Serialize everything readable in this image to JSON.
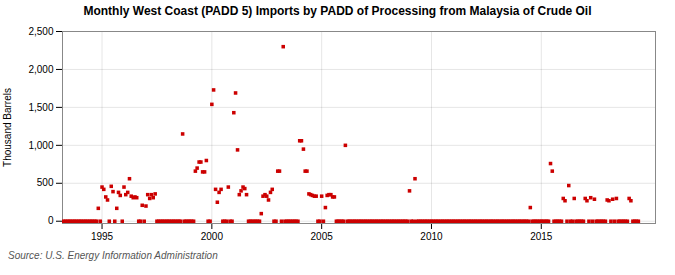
{
  "chart_data": {
    "type": "scatter",
    "title": "Monthly West Coast (PADD 5) Imports by PADD of Processing from Malaysia of Crude Oil",
    "ylabel": "Thousand Barrels",
    "source": "Source: U.S. Energy Information Administration",
    "color": "#cc0000",
    "marker": "square",
    "grid": true,
    "xlim": [
      1993.2,
      2020.2
    ],
    "xticks": [
      1995,
      2000,
      2005,
      2010,
      2015
    ],
    "ylim": [
      -30,
      2500
    ],
    "yticks": [
      0,
      500,
      {
        "value": 1000,
        "label": "1,000"
      },
      {
        "value": 1500,
        "label": "1,500"
      },
      {
        "value": 2000,
        "label": "2,000"
      },
      {
        "value": 2500,
        "label": "2,500"
      }
    ],
    "x": [
      1993.25,
      1993.33,
      1993.42,
      1993.5,
      1993.58,
      1993.67,
      1993.75,
      1993.83,
      1993.92,
      1994.0,
      1994.08,
      1994.17,
      1994.25,
      1994.33,
      1994.42,
      1994.5,
      1994.58,
      1994.67,
      1994.75,
      1994.83,
      1994.92,
      1995.0,
      1995.08,
      1995.17,
      1995.25,
      1995.33,
      1995.42,
      1995.5,
      1995.58,
      1995.67,
      1995.75,
      1995.83,
      1995.92,
      1996.0,
      1996.08,
      1996.17,
      1996.25,
      1996.33,
      1996.42,
      1996.5,
      1996.58,
      1996.67,
      1996.75,
      1996.83,
      1996.92,
      1997.0,
      1997.08,
      1997.17,
      1997.25,
      1997.33,
      1997.42,
      1997.5,
      1997.58,
      1997.67,
      1997.75,
      1997.83,
      1997.92,
      1998.0,
      1998.08,
      1998.17,
      1998.25,
      1998.33,
      1998.42,
      1998.5,
      1998.58,
      1998.67,
      1998.75,
      1998.83,
      1998.92,
      1999.0,
      1999.08,
      1999.17,
      1999.25,
      1999.33,
      1999.42,
      1999.5,
      1999.58,
      1999.67,
      1999.75,
      1999.83,
      1999.92,
      2000.0,
      2000.08,
      2000.17,
      2000.25,
      2000.33,
      2000.42,
      2000.5,
      2000.58,
      2000.67,
      2000.75,
      2000.83,
      2000.92,
      2001.0,
      2001.08,
      2001.17,
      2001.25,
      2001.33,
      2001.42,
      2001.5,
      2001.58,
      2001.67,
      2001.75,
      2001.83,
      2001.92,
      2002.0,
      2002.08,
      2002.17,
      2002.25,
      2002.33,
      2002.42,
      2002.5,
      2002.58,
      2002.67,
      2002.75,
      2002.83,
      2002.92,
      2003.0,
      2003.08,
      2003.17,
      2003.25,
      2003.33,
      2003.42,
      2003.5,
      2003.58,
      2003.67,
      2003.75,
      2003.83,
      2003.92,
      2004.0,
      2004.08,
      2004.17,
      2004.25,
      2004.33,
      2004.42,
      2004.5,
      2004.58,
      2004.67,
      2004.75,
      2004.83,
      2004.92,
      2005.0,
      2005.08,
      2005.17,
      2005.25,
      2005.33,
      2005.42,
      2005.5,
      2005.58,
      2005.67,
      2005.75,
      2005.83,
      2005.92,
      2006.0,
      2006.08,
      2006.17,
      2006.25,
      2006.33,
      2006.42,
      2006.5,
      2006.58,
      2006.67,
      2006.75,
      2006.83,
      2006.92,
      2007.0,
      2007.08,
      2007.17,
      2007.25,
      2007.33,
      2007.42,
      2007.5,
      2007.58,
      2007.67,
      2007.75,
      2007.83,
      2007.92,
      2008.0,
      2008.08,
      2008.17,
      2008.25,
      2008.33,
      2008.42,
      2008.5,
      2008.58,
      2008.67,
      2008.75,
      2008.83,
      2008.92,
      2009.0,
      2009.08,
      2009.17,
      2009.25,
      2009.33,
      2009.42,
      2009.5,
      2009.58,
      2009.67,
      2009.75,
      2009.83,
      2009.92,
      2010.0,
      2010.08,
      2010.17,
      2010.25,
      2010.33,
      2010.42,
      2010.5,
      2010.58,
      2010.67,
      2010.75,
      2010.83,
      2010.92,
      2011.0,
      2011.08,
      2011.17,
      2011.25,
      2011.33,
      2011.42,
      2011.5,
      2011.58,
      2011.67,
      2011.75,
      2011.83,
      2011.92,
      2012.0,
      2012.08,
      2012.17,
      2012.25,
      2012.33,
      2012.42,
      2012.5,
      2012.58,
      2012.67,
      2012.75,
      2012.83,
      2012.92,
      2013.0,
      2013.08,
      2013.17,
      2013.25,
      2013.33,
      2013.42,
      2013.5,
      2013.58,
      2013.67,
      2013.75,
      2013.83,
      2013.92,
      2014.0,
      2014.08,
      2014.17,
      2014.25,
      2014.33,
      2014.42,
      2014.5,
      2014.58,
      2014.67,
      2014.75,
      2014.83,
      2014.92,
      2015.0,
      2015.08,
      2015.17,
      2015.25,
      2015.33,
      2015.42,
      2015.5,
      2015.58,
      2015.67,
      2015.75,
      2015.83,
      2015.92,
      2016.0,
      2016.08,
      2016.17,
      2016.25,
      2016.33,
      2016.42,
      2016.5,
      2016.58,
      2016.67,
      2016.75,
      2016.83,
      2016.92,
      2017.0,
      2017.08,
      2017.17,
      2017.25,
      2017.33,
      2017.42,
      2017.5,
      2017.58,
      2017.67,
      2017.75,
      2017.83,
      2017.92,
      2018.0,
      2018.08,
      2018.17,
      2018.25,
      2018.33,
      2018.42,
      2018.5,
      2018.58,
      2018.67,
      2018.75,
      2018.83,
      2018.92,
      2019.0,
      2019.08,
      2019.17,
      2019.25,
      2019.33,
      2019.42
    ],
    "values": [
      0,
      0,
      0,
      0,
      0,
      0,
      0,
      0,
      0,
      0,
      0,
      0,
      0,
      0,
      0,
      0,
      0,
      0,
      0,
      170,
      0,
      450,
      420,
      320,
      280,
      0,
      460,
      390,
      0,
      170,
      380,
      340,
      0,
      450,
      350,
      380,
      560,
      330,
      310,
      320,
      310,
      0,
      0,
      210,
      0,
      200,
      350,
      300,
      350,
      310,
      360,
      0,
      0,
      0,
      0,
      0,
      0,
      0,
      0,
      0,
      0,
      0,
      0,
      0,
      0,
      1150,
      0,
      0,
      0,
      0,
      0,
      0,
      660,
      700,
      780,
      780,
      650,
      650,
      800,
      0,
      0,
      1540,
      1730,
      420,
      250,
      380,
      420,
      0,
      0,
      0,
      450,
      0,
      0,
      1430,
      1690,
      940,
      350,
      400,
      450,
      430,
      350,
      0,
      0,
      0,
      0,
      0,
      0,
      0,
      100,
      330,
      350,
      330,
      280,
      380,
      420,
      0,
      0,
      660,
      660,
      0,
      2300,
      0,
      0,
      0,
      0,
      0,
      0,
      0,
      0,
      1060,
      1060,
      950,
      660,
      660,
      360,
      350,
      340,
      330,
      330,
      0,
      0,
      330,
      0,
      180,
      340,
      350,
      350,
      320,
      320,
      0,
      0,
      0,
      0,
      0,
      1000,
      0,
      0,
      0,
      0,
      0,
      0,
      0,
      0,
      0,
      0,
      0,
      0,
      0,
      0,
      0,
      0,
      0,
      0,
      0,
      0,
      0,
      0,
      0,
      0,
      0,
      0,
      0,
      0,
      0,
      0,
      0,
      0,
      0,
      0,
      400,
      0,
      0,
      560,
      0,
      0,
      0,
      0,
      0,
      0,
      0,
      0,
      0,
      0,
      0,
      0,
      0,
      0,
      0,
      0,
      0,
      0,
      0,
      0,
      0,
      0,
      0,
      0,
      0,
      0,
      0,
      0,
      0,
      0,
      0,
      0,
      0,
      0,
      0,
      0,
      0,
      0,
      0,
      0,
      0,
      0,
      0,
      0,
      0,
      0,
      0,
      0,
      0,
      0,
      0,
      0,
      0,
      0,
      0,
      0,
      0,
      0,
      0,
      0,
      0,
      0,
      180,
      0,
      0,
      0,
      0,
      0,
      0,
      0,
      0,
      0,
      0,
      760,
      660,
      0,
      0,
      0,
      0,
      0,
      300,
      270,
      0,
      470,
      0,
      0,
      300,
      0,
      0,
      0,
      0,
      0,
      300,
      270,
      0,
      310,
      0,
      290,
      0,
      0,
      0,
      0,
      0,
      0,
      280,
      270,
      0,
      290,
      0,
      300,
      0,
      0,
      0,
      0,
      0,
      0,
      300,
      270,
      0,
      0,
      0,
      0
    ]
  }
}
